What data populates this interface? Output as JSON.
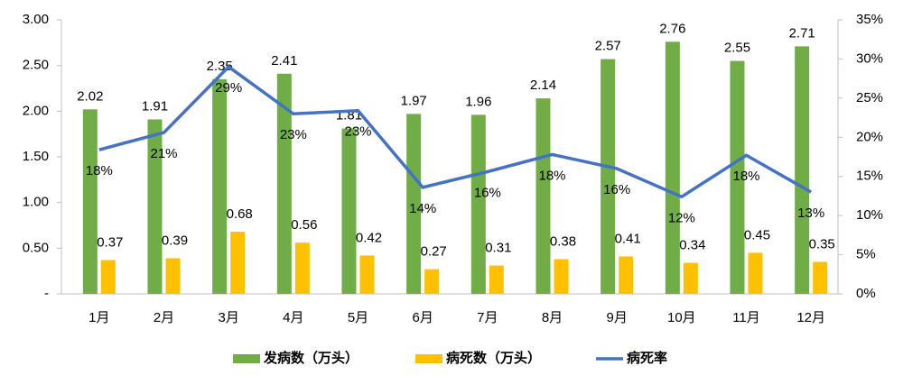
{
  "chart_data": {
    "type": "bar-line",
    "categories": [
      "1月",
      "2月",
      "3月",
      "4月",
      "5月",
      "6月",
      "7月",
      "8月",
      "9月",
      "10月",
      "11月",
      "12月"
    ],
    "series": [
      {
        "name": "发病数（万头）",
        "color": "#70ad47",
        "type": "bar",
        "values": [
          2.02,
          1.91,
          2.35,
          2.41,
          1.81,
          1.97,
          1.96,
          2.14,
          2.57,
          2.76,
          2.55,
          2.71
        ]
      },
      {
        "name": "病死数（万头）",
        "color": "#ffc000",
        "type": "bar",
        "values": [
          0.37,
          0.39,
          0.68,
          0.56,
          0.42,
          0.27,
          0.31,
          0.38,
          0.41,
          0.34,
          0.45,
          0.35
        ]
      },
      {
        "name": "病死率",
        "color": "#4472c4",
        "type": "line",
        "axis": "y2",
        "values": [
          18.4,
          20.6,
          29.0,
          23.0,
          23.4,
          13.6,
          15.6,
          17.8,
          16.0,
          12.4,
          17.7,
          13.0
        ],
        "value_labels": [
          "18%",
          "21%",
          "29%",
          "23%",
          "23%",
          "14%",
          "16%",
          "18%",
          "16%",
          "12%",
          "18%",
          "13%"
        ]
      }
    ],
    "ylim": [
      0,
      3
    ],
    "yticks": [
      {
        "value": 0,
        "label": "-"
      },
      {
        "value": 0.5,
        "label": "0.50"
      },
      {
        "value": 1,
        "label": "1.00"
      },
      {
        "value": 1.5,
        "label": "1.50"
      },
      {
        "value": 2,
        "label": "2.00"
      },
      {
        "value": 2.5,
        "label": "2.50"
      },
      {
        "value": 3,
        "label": "3.00"
      }
    ],
    "y2lim": [
      0,
      35
    ],
    "y2ticks": [
      {
        "value": 0,
        "label": "0%"
      },
      {
        "value": 5,
        "label": "5%"
      },
      {
        "value": 10,
        "label": "10%"
      },
      {
        "value": 15,
        "label": "15%"
      },
      {
        "value": 20,
        "label": "20%"
      },
      {
        "value": 25,
        "label": "25%"
      },
      {
        "value": 30,
        "label": "30%"
      },
      {
        "value": 35,
        "label": "35%"
      }
    ],
    "grid": false,
    "legend": "bottom"
  }
}
